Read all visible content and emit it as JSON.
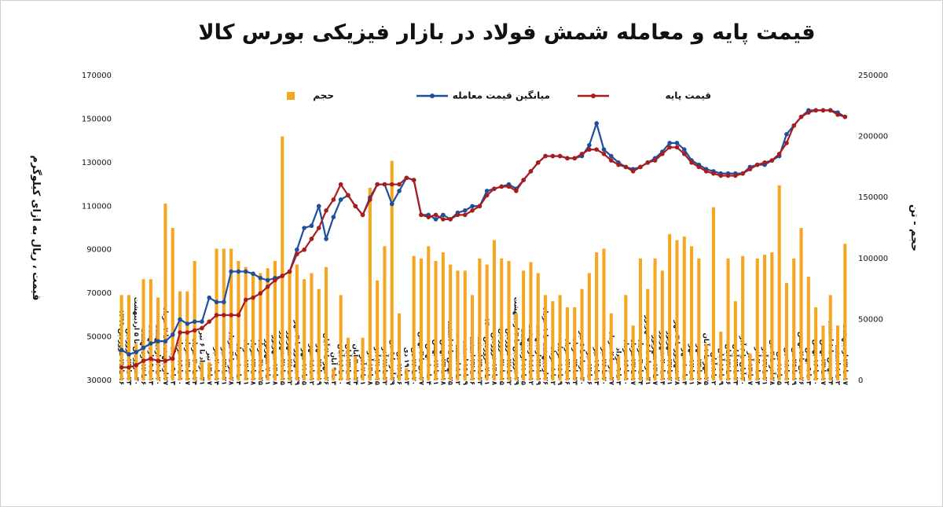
{
  "chart_data": {
    "type": "bar_line",
    "title": "قیمت پایه و معامله شمش فولاد در بازار فیزیکی بورس کالا",
    "y_label": "قیمت ، ریال به ازای کیلوگرم",
    "y2_label": "حجم - تن",
    "ylim": [
      30000,
      170000
    ],
    "yticks": [
      30000,
      50000,
      70000,
      90000,
      110000,
      130000,
      150000,
      170000
    ],
    "y2lim": [
      0,
      250000
    ],
    "y2ticks": [
      0,
      50000,
      100000,
      150000,
      200000,
      250000
    ],
    "grid": false,
    "categories": [
      "۱۶ تا ۲۲ فروردین ۱۳۹۹",
      "۲۳ تا ۲۹ فروردین",
      "۳۰ فروردین تا ۵ اردیبهشت",
      "۶ تا ۱۲ اردیبهشت",
      "۱۳ تا ۱۹ اردیبهشت",
      "۲۰ تا ۲۶ اردیبهشت",
      "۲۷ اردیبهشت تا ۲ خرداد",
      "۳ تا ۹ خرداد",
      "۱۰ تا ۱۶ خرداد",
      "۱۷ تا ۲۳ خرداد",
      "۲۴ تا ۳۰ خرداد",
      "۳۱ خرداد تا ۶ تیر",
      "۷ تا ۱۳ تیر",
      "۱۴ تا ۲۰ تیر",
      "۲۱ تا ۲۷ تیر",
      "۲۸ تیر تا ۳ مرداد",
      "۴ تا ۱۰ مرداد",
      "۱۱ تا ۱۷ مرداد",
      "۱۸ تا ۲۴ مرداد",
      "۲۵ تا ۳۱ مرداد",
      "۱ تا ۷ شهریور",
      "۸ تا ۱۴ شهریور",
      "۱۵ تا ۲۱ شهریور",
      "۲۲ تا ۲۸ شهریور",
      "۲۹ شهریور تا ۴ مهر",
      "۵ تا ۱۱ مهر",
      "۱۲ تا ۱۸ مهر",
      "۱۹ تا ۲۵ مهر",
      "۲۶ مهر تا ۲ آبان",
      "۳ تا ۹ آبان",
      "۱۰ تا ۱۶ آبان",
      "۱۷ تا ۲۳ آبان",
      "۲۴ تا ۳۰ آبان",
      "۱ تا ۷ آذر",
      "۸ تا ۱۴ آذر",
      "۱۵ تا ۲۱ آذر",
      "۲۲ تا ۲۸ آذر",
      "۲۹ آذر تا ۵ دی",
      "۶ تا ۱۲ دی",
      "۱۳ تا ۱۹ دی",
      "۲۰ تا ۲۶ دی",
      "۲۷ دی تا ۳ بهمن",
      "۴ تا ۱۰ بهمن",
      "۱۱ تا ۱۷ بهمن",
      "۱۸ تا ۲۴ بهمن",
      "۲۵ بهمن تا ۱ اسفند",
      "۲ تا ۸ اسفند",
      "۹ تا ۱۵ اسفند",
      "۱۶ تا ۲۲ اسفند",
      "۲۳ تا ۲۹ اسفند",
      "۱ تا ۷ فروردین ۱۴۰۰",
      "۸ تا ۱۴ فروردین",
      "۱۵ تا ۲۱ فروردین",
      "۲۲ تا ۲۸ فروردین",
      "۲۹ فروردین تا ۴ اردیبهشت",
      "۵ تا ۱۱ اردیبهشت",
      "۱۲ تا ۱۸ اردیبهشت",
      "۱۹ تا ۲۵ اردیبهشت",
      "۲۶ اردیبهشت تا ۱ خرداد",
      "۲ تا ۸ خرداد",
      "۹ تا ۱۵ خرداد",
      "۱۶ تا ۲۲ خرداد",
      "۲۳ تا ۲۹ خرداد",
      "۳۰ خرداد تا ۵ تیر",
      "۶ تا ۱۲ تیر",
      "۱۳ تا ۱۹ تیر",
      "۲۰ تا ۲۶ تیر",
      "۲۷ تیر تا ۲ مرداد",
      "۳ تا ۹ مرداد",
      "۱۰ تا ۱۶ مرداد",
      "۱۷ تا ۲۳ مرداد",
      "۲۴ تا ۳۰ مرداد",
      "۳۱ مرداد تا ۶ شهریور",
      "۷ تا ۱۳ شهریور",
      "۱۴ تا ۲۰ شهریور",
      "۲۱ تا ۲۷ شهریور",
      "۲۸ شهریور تا ۳ مهر",
      "۴ تا ۱۰ مهر",
      "۱۱ تا ۱۷ مهر",
      "۱۸ تا ۲۴ مهر",
      "۲۵ مهر تا ۱ آبان",
      "۲ تا ۸ آبان",
      "۹ تا ۱۵ آبان",
      "۱۶ تا ۲۲ آبان",
      "۲۳ تا ۲۹ آبان",
      "۳۰ آبان تا ۶ آذر",
      "۷ تا ۱۳ آذر",
      "۱۴ تا ۲۰ آذر",
      "۲۱ تا ۲۷ آذر",
      "۲۸ آذر تا ۴ دی",
      "۵ تا ۱۱ دی",
      "۱۲ تا ۱۸ دی",
      "۱۹ تا ۲۵ دی",
      "۲۶ دی تا ۲ بهمن",
      "۳ تا ۹ بهمن",
      "۱۰ تا ۱۶ بهمن",
      "۱۷ تا ۲۳ بهمن",
      "۲۴ بهمن تا ۱ اسفند",
      "۲ تا ۸ اسفند",
      "۱۷ تا ۲۳ اردیبهشت"
    ],
    "series": [
      {
        "name": "حجم",
        "type": "bar",
        "axis": "y2",
        "color": "#f5a623",
        "values": [
          70000,
          70000,
          30000,
          83000,
          83000,
          68000,
          145000,
          125000,
          73000,
          73000,
          98000,
          15000,
          15000,
          108000,
          108000,
          108000,
          98000,
          93000,
          88000,
          88000,
          92000,
          98000,
          200000,
          88000,
          95000,
          83000,
          88000,
          75000,
          93000,
          10000,
          70000,
          35000,
          20000,
          35000,
          158000,
          82000,
          110000,
          180000,
          55000,
          10000,
          102000,
          100000,
          110000,
          98000,
          105000,
          95000,
          90000,
          90000,
          70000,
          100000,
          95000,
          115000,
          100000,
          98000,
          55000,
          90000,
          97000,
          88000,
          70000,
          65000,
          70000,
          60000,
          60000,
          75000,
          88000,
          105000,
          108000,
          55000,
          20000,
          70000,
          45000,
          100000,
          75000,
          100000,
          90000,
          120000,
          115000,
          118000,
          110000,
          100000,
          30000,
          142000,
          40000,
          100000,
          65000,
          102000,
          22000,
          100000,
          103000,
          105000,
          160000,
          80000,
          100000,
          125000,
          85000,
          60000,
          45000,
          70000,
          45000,
          112000
        ]
      },
      {
        "name": "میانگین قیمت معامله",
        "type": "line",
        "color": "#1f4e9c",
        "values": [
          44000,
          42000,
          43000,
          45000,
          47000,
          48000,
          48000,
          51000,
          58000,
          56000,
          57000,
          57000,
          68000,
          66000,
          66000,
          80000,
          80000,
          80000,
          79000,
          77000,
          76000,
          77000,
          78000,
          80000,
          90000,
          100000,
          101000,
          110000,
          95000,
          105000,
          113000,
          115000,
          110000,
          106000,
          114000,
          120000,
          120000,
          111000,
          117000,
          123000,
          122000,
          106000,
          106000,
          104000,
          106000,
          104000,
          107000,
          108000,
          110000,
          110000,
          117000,
          118000,
          119000,
          120000,
          118000,
          122000,
          126000,
          130000,
          133000,
          133000,
          133000,
          132000,
          132000,
          133000,
          138000,
          148000,
          136000,
          133000,
          130000,
          128000,
          127000,
          128000,
          130000,
          132000,
          135000,
          139000,
          139000,
          136000,
          131000,
          129000,
          127000,
          126000,
          125000,
          125000,
          125000,
          125000,
          128000,
          129000,
          129000,
          131000,
          133000,
          143000,
          147000,
          151000,
          154000,
          154000,
          154000,
          154000,
          153000,
          151000
        ]
      },
      {
        "name": "قیمت پایه",
        "type": "line",
        "color": "#a81c1c",
        "values": [
          36000,
          36000,
          37000,
          39000,
          40000,
          39000,
          39000,
          40000,
          52000,
          52000,
          53000,
          54000,
          57000,
          60000,
          60000,
          60000,
          60000,
          67000,
          68000,
          70000,
          73000,
          76000,
          78000,
          80000,
          88000,
          90000,
          95000,
          100000,
          108000,
          113000,
          120000,
          115000,
          110000,
          106000,
          113000,
          120000,
          120000,
          120000,
          120000,
          123000,
          122000,
          106000,
          105000,
          106000,
          104000,
          104000,
          106000,
          106000,
          108000,
          110000,
          115000,
          118000,
          119000,
          119000,
          117000,
          122000,
          126000,
          130000,
          133000,
          133000,
          133000,
          132000,
          132000,
          134000,
          136000,
          136000,
          134000,
          131000,
          129000,
          128000,
          126000,
          128000,
          130000,
          131000,
          134000,
          137000,
          137000,
          134000,
          130000,
          128000,
          126000,
          125000,
          124000,
          124000,
          124000,
          125000,
          127000,
          129000,
          130000,
          131000,
          134000,
          139000,
          147000,
          151000,
          153000,
          154000,
          154000,
          154000,
          152000,
          151000
        ]
      }
    ]
  }
}
